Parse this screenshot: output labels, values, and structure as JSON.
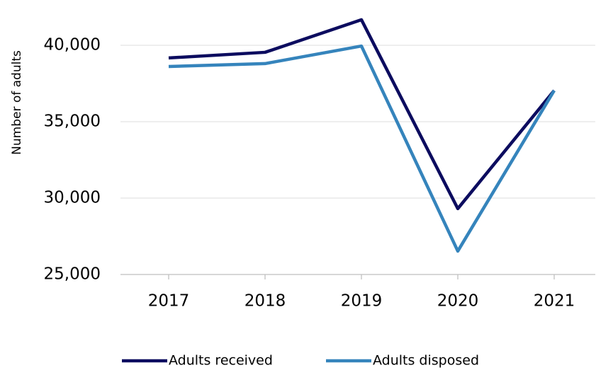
{
  "chart_data": {
    "type": "line",
    "y_axis_label": "Number of adults",
    "categories": [
      "2017",
      "2018",
      "2019",
      "2020",
      "2021"
    ],
    "series": [
      {
        "name": "Adults received",
        "color": "#0c0c5f",
        "values": [
          39170,
          39540,
          41670,
          29310,
          37040
        ]
      },
      {
        "name": "Adults disposed",
        "color": "#3584bc",
        "values": [
          38610,
          38800,
          39950,
          26530,
          37040
        ]
      }
    ],
    "ylim": [
      25000,
      42000
    ],
    "yticks": [
      {
        "value": 25000,
        "label": "25,000"
      },
      {
        "value": 30000,
        "label": "30,000"
      },
      {
        "value": 35000,
        "label": "35,000"
      },
      {
        "value": 40000,
        "label": "40,000"
      }
    ],
    "grid": true,
    "legend": "bottom"
  }
}
